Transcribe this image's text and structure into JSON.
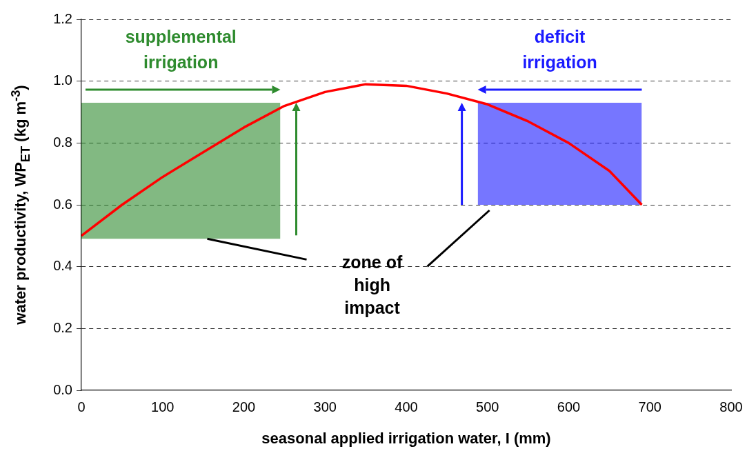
{
  "chart_data": {
    "type": "line",
    "xlabel": "seasonal applied irrigation water, I (mm)",
    "ylabel": "water productivity, WP$_{ET}$ (kg m$^{-3}$)",
    "xlim": [
      0,
      800
    ],
    "xticks": [
      0,
      100,
      200,
      300,
      400,
      500,
      600,
      700,
      800
    ],
    "ylim": [
      0,
      1.2
    ],
    "yticks": [
      {
        "value": 0,
        "label": "0.0"
      },
      {
        "value": 0.2,
        "label": "0.2"
      },
      {
        "value": 0.4,
        "label": "0.4"
      },
      {
        "value": 0.6,
        "label": "0.6"
      },
      {
        "value": 0.8,
        "label": "0.8"
      },
      {
        "value": 1,
        "label": "1.0"
      },
      {
        "value": 1.2,
        "label": "1.2"
      }
    ],
    "grid": "y",
    "legend": false,
    "marker": "none",
    "line_style": "solid",
    "annotations": [
      "zone of high impact"
    ],
    "series": [
      {
        "type": "area",
        "name": "supplemental irrigation",
        "color": "#2e8b2e",
        "x": [
          0,
          245
        ],
        "values": [
          null,
          null
        ],
        "lower": [
          0.49,
          0.49
        ],
        "upper": [
          0.93,
          0.93
        ]
      },
      {
        "type": "area",
        "name": "deficit irrigation",
        "color": "#1a1aff",
        "x": [
          488,
          690
        ],
        "values": [
          null,
          null
        ],
        "lower": [
          0.6,
          0.6
        ],
        "upper": [
          0.93,
          0.93
        ]
      },
      {
        "type": "line",
        "color": "#ff0000",
        "x": [
          0,
          50,
          100,
          150,
          200,
          250,
          300,
          350,
          400,
          450,
          500,
          550,
          600,
          650,
          690
        ],
        "values": [
          0.5,
          0.6,
          0.69,
          0.77,
          0.85,
          0.92,
          0.965,
          0.99,
          0.985,
          0.96,
          0.925,
          0.87,
          0.8,
          0.71,
          0.6
        ]
      }
    ]
  }
}
